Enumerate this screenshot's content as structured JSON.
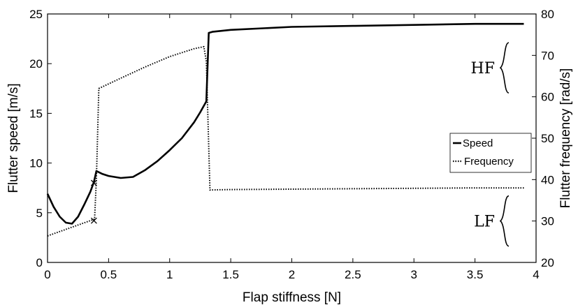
{
  "chart_data": {
    "type": "line",
    "xlabel": "Flap stiffness [N]",
    "ylabel": "Flutter speed [m/s]",
    "y2label": "Flutter frequency [rad/s]",
    "xlim": [
      0,
      4
    ],
    "ylim": [
      0,
      25
    ],
    "y2lim": [
      20,
      80
    ],
    "xticks": [
      0,
      0.5,
      1,
      1.5,
      2,
      2.5,
      3,
      3.5,
      4
    ],
    "xtick_labels": [
      "0",
      "0.5",
      "1",
      "1.5",
      "2",
      "2.5",
      "3",
      "3.5",
      "4"
    ],
    "yticks": [
      0,
      5,
      10,
      15,
      20,
      25
    ],
    "ytick_labels": [
      "0",
      "5",
      "10",
      "15",
      "20",
      "25"
    ],
    "y2ticks": [
      20,
      30,
      40,
      50,
      60,
      70,
      80
    ],
    "y2tick_labels": [
      "20",
      "30",
      "40",
      "50",
      "60",
      "70",
      "80"
    ],
    "grid": false,
    "legend_position": "right",
    "series": [
      {
        "name": "Speed",
        "axis": "left",
        "style": "solid",
        "x": [
          0,
          0.05,
          0.1,
          0.15,
          0.2,
          0.25,
          0.3,
          0.35,
          0.38,
          0.4,
          0.45,
          0.5,
          0.6,
          0.7,
          0.8,
          0.9,
          1.0,
          1.1,
          1.2,
          1.25,
          1.3,
          1.32,
          1.35,
          1.5,
          2.0,
          2.5,
          3.0,
          3.5,
          3.9
        ],
        "y": [
          6.9,
          5.6,
          4.6,
          4.0,
          3.9,
          4.6,
          5.8,
          7.1,
          8.1,
          9.2,
          8.9,
          8.7,
          8.5,
          8.6,
          9.3,
          10.2,
          11.3,
          12.5,
          14.1,
          15.1,
          16.2,
          23.1,
          23.2,
          23.4,
          23.7,
          23.8,
          23.9,
          24.0,
          24.0
        ]
      },
      {
        "name": "Frequency",
        "axis": "right",
        "style": "dotted",
        "x": [
          0,
          0.38,
          0.385,
          0.4,
          0.42,
          0.6,
          0.8,
          1.0,
          1.2,
          1.28,
          1.3,
          1.33,
          1.5,
          2.0,
          2.5,
          3.0,
          3.5,
          3.9
        ],
        "y": [
          26.4,
          30.4,
          30.4,
          40.0,
          62.0,
          64.5,
          67.2,
          69.7,
          71.6,
          72.1,
          68.5,
          37.5,
          37.6,
          37.7,
          37.8,
          37.9,
          38.0,
          38.0
        ]
      }
    ],
    "markers": [
      {
        "x": 0.38,
        "y": 8.0,
        "axis": "left",
        "symbol": "x"
      },
      {
        "x": 0.38,
        "y": 4.2,
        "axis": "left",
        "symbol": "x"
      }
    ],
    "annotations": [
      {
        "text": "HF",
        "x": 4.0,
        "y2": 67
      },
      {
        "text": "LF",
        "x": 4.0,
        "y2": 30
      }
    ]
  },
  "legend": {
    "speed_label": "Speed",
    "frequency_label": "Frequency"
  }
}
